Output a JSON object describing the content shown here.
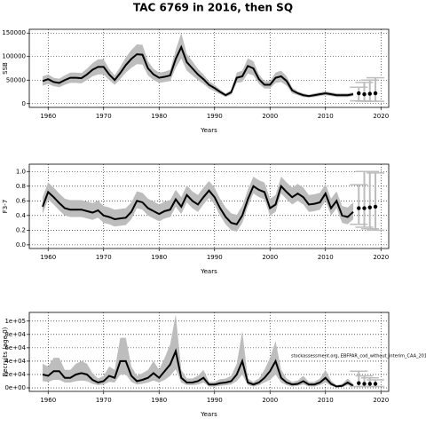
{
  "title": "TAC 6769 in 2016, then SQ",
  "chart_data": [
    {
      "type": "line",
      "ylabel": "SSB",
      "xlabel": "Years",
      "grid": true,
      "color": "#000000",
      "band_color": "#bdbdbd",
      "xlim": [
        1956.6,
        2021.4
      ],
      "xticks": [
        1960,
        1970,
        1980,
        1990,
        2000,
        2010,
        2020
      ],
      "ylim": [
        -8000,
        158000
      ],
      "yticks": [
        0,
        50000,
        100000,
        150000
      ],
      "x": [
        1959,
        1960,
        1961,
        1962,
        1963,
        1964,
        1965,
        1966,
        1967,
        1968,
        1969,
        1970,
        1971,
        1972,
        1973,
        1974,
        1975,
        1976,
        1977,
        1978,
        1979,
        1980,
        1981,
        1982,
        1983,
        1984,
        1985,
        1986,
        1987,
        1988,
        1989,
        1990,
        1991,
        1992,
        1993,
        1994,
        1995,
        1996,
        1997,
        1998,
        1999,
        2000,
        2001,
        2002,
        2003,
        2004,
        2005,
        2006,
        2007,
        2008,
        2009,
        2010,
        2011,
        2012,
        2013,
        2014,
        2015
      ],
      "values": [
        48000,
        52000,
        46000,
        44000,
        50000,
        55000,
        55000,
        54000,
        62000,
        72000,
        78000,
        78000,
        62000,
        50000,
        65000,
        82000,
        95000,
        105000,
        104000,
        75000,
        62000,
        55000,
        57000,
        60000,
        95000,
        120000,
        88000,
        75000,
        62000,
        52000,
        40000,
        33000,
        25000,
        18000,
        24000,
        55000,
        58000,
        80000,
        75000,
        52000,
        40000,
        40000,
        55000,
        58000,
        48000,
        28000,
        22000,
        18000,
        16000,
        18000,
        20000,
        22000,
        20000,
        18000,
        18000,
        18000,
        20000
      ],
      "upper": [
        58000,
        62000,
        55000,
        53000,
        60000,
        66000,
        66000,
        65000,
        74000,
        86000,
        94000,
        94000,
        74000,
        60000,
        78000,
        98000,
        114000,
        126000,
        125000,
        90000,
        74000,
        66000,
        68000,
        72000,
        114000,
        150000,
        106000,
        90000,
        74000,
        62000,
        48000,
        40000,
        30000,
        22000,
        29000,
        66000,
        70000,
        96000,
        90000,
        62000,
        48000,
        48000,
        66000,
        70000,
        58000,
        34000,
        26000,
        22000,
        19000,
        22000,
        24000,
        26000,
        24000,
        22000,
        22000,
        22000,
        24000
      ],
      "lower": [
        38000,
        42000,
        37000,
        35000,
        40000,
        44000,
        44000,
        43000,
        50000,
        58000,
        62000,
        62000,
        50000,
        40000,
        52000,
        66000,
        76000,
        84000,
        83000,
        60000,
        50000,
        44000,
        46000,
        48000,
        76000,
        96000,
        70000,
        60000,
        50000,
        42000,
        32000,
        26000,
        20000,
        14000,
        19000,
        44000,
        46000,
        64000,
        60000,
        42000,
        32000,
        32000,
        44000,
        46000,
        38000,
        22000,
        18000,
        14000,
        13000,
        14000,
        16000,
        18000,
        16000,
        14000,
        14000,
        14000,
        16000
      ],
      "forecast": {
        "x": [
          2016,
          2017,
          2018,
          2019
        ],
        "values": [
          22000,
          20000,
          21000,
          22000
        ],
        "lower": [
          6000,
          5000,
          5000,
          5000
        ],
        "upper": [
          35000,
          45000,
          50000,
          55000
        ]
      }
    },
    {
      "type": "line",
      "ylabel": "F3-7",
      "xlabel": "Years",
      "grid": true,
      "color": "#000000",
      "band_color": "#bdbdbd",
      "xlim": [
        1956.6,
        2021.4
      ],
      "xticks": [
        1960,
        1970,
        1980,
        1990,
        2000,
        2010,
        2020
      ],
      "ylim": [
        -0.05,
        1.1
      ],
      "yticks": [
        {
          "value": 0,
          "label": "0.0"
        },
        0.2,
        0.4,
        0.6,
        0.8,
        {
          "value": 1,
          "label": "1.0"
        }
      ],
      "x": [
        1959,
        1960,
        1961,
        1962,
        1963,
        1964,
        1965,
        1966,
        1967,
        1968,
        1969,
        1970,
        1971,
        1972,
        1973,
        1974,
        1975,
        1976,
        1977,
        1978,
        1979,
        1980,
        1981,
        1982,
        1983,
        1984,
        1985,
        1986,
        1987,
        1988,
        1989,
        1990,
        1991,
        1992,
        1993,
        1994,
        1995,
        1996,
        1997,
        1998,
        1999,
        2000,
        2001,
        2002,
        2003,
        2004,
        2005,
        2006,
        2007,
        2008,
        2009,
        2010,
        2011,
        2012,
        2013,
        2014,
        2015
      ],
      "values": [
        0.52,
        0.72,
        0.65,
        0.57,
        0.5,
        0.48,
        0.48,
        0.48,
        0.46,
        0.44,
        0.47,
        0.4,
        0.38,
        0.35,
        0.36,
        0.37,
        0.45,
        0.6,
        0.58,
        0.5,
        0.46,
        0.42,
        0.46,
        0.48,
        0.62,
        0.52,
        0.68,
        0.6,
        0.55,
        0.65,
        0.74,
        0.65,
        0.5,
        0.38,
        0.3,
        0.28,
        0.4,
        0.62,
        0.8,
        0.75,
        0.72,
        0.5,
        0.55,
        0.8,
        0.72,
        0.65,
        0.7,
        0.65,
        0.55,
        0.56,
        0.58,
        0.7,
        0.5,
        0.6,
        0.4,
        0.38,
        0.45
      ],
      "upper": [
        0.65,
        0.85,
        0.78,
        0.7,
        0.63,
        0.61,
        0.61,
        0.61,
        0.59,
        0.57,
        0.6,
        0.53,
        0.51,
        0.48,
        0.49,
        0.5,
        0.58,
        0.73,
        0.71,
        0.63,
        0.59,
        0.55,
        0.59,
        0.61,
        0.75,
        0.65,
        0.81,
        0.73,
        0.68,
        0.78,
        0.87,
        0.78,
        0.63,
        0.51,
        0.43,
        0.41,
        0.53,
        0.75,
        0.93,
        0.88,
        0.85,
        0.63,
        0.68,
        0.93,
        0.85,
        0.78,
        0.83,
        0.78,
        0.68,
        0.69,
        0.71,
        0.83,
        0.63,
        0.73,
        0.53,
        0.51,
        0.58
      ],
      "lower": [
        0.42,
        0.62,
        0.55,
        0.47,
        0.4,
        0.38,
        0.38,
        0.38,
        0.36,
        0.34,
        0.37,
        0.3,
        0.28,
        0.25,
        0.26,
        0.27,
        0.35,
        0.5,
        0.48,
        0.4,
        0.36,
        0.32,
        0.36,
        0.38,
        0.52,
        0.42,
        0.58,
        0.5,
        0.45,
        0.55,
        0.64,
        0.55,
        0.4,
        0.28,
        0.2,
        0.18,
        0.3,
        0.52,
        0.7,
        0.65,
        0.62,
        0.4,
        0.45,
        0.7,
        0.62,
        0.55,
        0.6,
        0.55,
        0.45,
        0.46,
        0.48,
        0.6,
        0.4,
        0.5,
        0.3,
        0.28,
        0.35
      ],
      "forecast": {
        "x": [
          2016,
          2017,
          2018,
          2019
        ],
        "values": [
          0.5,
          0.5,
          0.51,
          0.52
        ],
        "lower": [
          0.28,
          0.24,
          0.22,
          0.2
        ],
        "upper": [
          0.82,
          1.0,
          1.0,
          0.98
        ]
      }
    },
    {
      "type": "line",
      "ylabel": "Recruits (age 0)",
      "xlabel": "Years",
      "grid": true,
      "color": "#000000",
      "band_color": "#bdbdbd",
      "annotation": "stockassessment.org, EBFPAR_cod_without_interim_CAA_201",
      "xlim": [
        1956.6,
        2021.4
      ],
      "xticks": [
        1960,
        1970,
        1980,
        1990,
        2000,
        2010,
        2020
      ],
      "ylim": [
        -5300,
        113000
      ],
      "yticks": [
        {
          "value": 0,
          "label": "0e+00"
        },
        {
          "value": 20000,
          "label": "2e+04"
        },
        {
          "value": 40000,
          "label": "4e+04"
        },
        {
          "value": 60000,
          "label": "6e+04"
        },
        {
          "value": 80000,
          "label": "8e+04"
        },
        {
          "value": 100000,
          "label": "1e+05"
        }
      ],
      "x": [
        1959,
        1960,
        1961,
        1962,
        1963,
        1964,
        1965,
        1966,
        1967,
        1968,
        1969,
        1970,
        1971,
        1972,
        1973,
        1974,
        1975,
        1976,
        1977,
        1978,
        1979,
        1980,
        1981,
        1982,
        1983,
        1984,
        1985,
        1986,
        1987,
        1988,
        1989,
        1990,
        1991,
        1992,
        1993,
        1994,
        1995,
        1996,
        1997,
        1998,
        1999,
        2000,
        2001,
        2002,
        2003,
        2004,
        2005,
        2006,
        2007,
        2008,
        2009,
        2010,
        2011,
        2012,
        2013,
        2014,
        2015
      ],
      "values": [
        20000,
        18000,
        25000,
        25000,
        15000,
        15000,
        20000,
        22000,
        20000,
        12000,
        8000,
        10000,
        18000,
        15000,
        40000,
        40000,
        18000,
        10000,
        12000,
        15000,
        22000,
        15000,
        25000,
        35000,
        55000,
        15000,
        8000,
        8000,
        10000,
        15000,
        5000,
        5000,
        7000,
        8000,
        10000,
        20000,
        40000,
        8000,
        5000,
        8000,
        15000,
        25000,
        40000,
        15000,
        8000,
        5000,
        6000,
        10000,
        5000,
        5000,
        8000,
        15000,
        6000,
        2000,
        3000,
        8000,
        3000
      ],
      "upper": [
        36000,
        32000,
        45000,
        45000,
        27000,
        27000,
        36000,
        40000,
        36000,
        22000,
        14000,
        18000,
        32000,
        27000,
        75000,
        75000,
        32000,
        18000,
        22000,
        27000,
        40000,
        27000,
        45000,
        65000,
        110000,
        27000,
        14000,
        14000,
        18000,
        27000,
        9000,
        9000,
        13000,
        14000,
        18000,
        36000,
        85000,
        14000,
        9000,
        14000,
        27000,
        45000,
        70000,
        27000,
        14000,
        9000,
        11000,
        18000,
        9000,
        9000,
        14000,
        27000,
        11000,
        4000,
        6000,
        14000,
        6000
      ],
      "lower": [
        10000,
        9000,
        12000,
        12000,
        8000,
        8000,
        10000,
        11000,
        10000,
        6000,
        4000,
        5000,
        9000,
        8000,
        20000,
        20000,
        9000,
        5000,
        6000,
        8000,
        11000,
        8000,
        12000,
        18000,
        28000,
        8000,
        4000,
        4000,
        5000,
        8000,
        2000,
        2000,
        3000,
        4000,
        5000,
        10000,
        20000,
        4000,
        2000,
        4000,
        8000,
        12000,
        20000,
        8000,
        4000,
        2000,
        3000,
        5000,
        2000,
        2000,
        4000,
        8000,
        3000,
        1000,
        1000,
        4000,
        1000
      ],
      "forecast": {
        "x": [
          2016,
          2017,
          2018,
          2019
        ],
        "values": [
          7000,
          6000,
          6000,
          6000
        ],
        "lower": [
          2000,
          2000,
          2000,
          2000
        ],
        "upper": [
          25000,
          18000,
          15000,
          12000
        ]
      }
    }
  ]
}
